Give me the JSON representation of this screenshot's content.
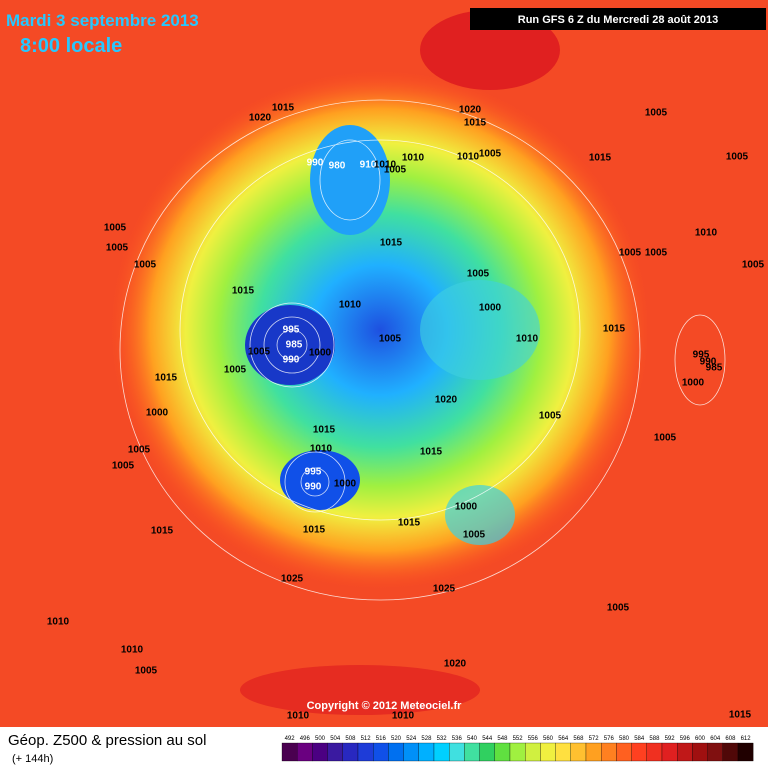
{
  "header": {
    "date": "Mardi 3 septembre 2013",
    "time": "8:00 locale",
    "run": "Run GFS 6 Z du Mercredi 28 août 2013"
  },
  "copyright": "Copyright © 2012 Meteociel.fr",
  "footer": {
    "title": "Géop. Z500 & pression au sol",
    "lead": "(+ 144h)"
  },
  "isobar_labels": [
    "1015",
    "1020",
    "1020",
    "1015",
    "1005",
    "990",
    "980",
    "910",
    "1010",
    "1005",
    "1010",
    "1010",
    "1005",
    "1015",
    "1005",
    "1005",
    "1005",
    "1005",
    "1010",
    "1015",
    "1005",
    "1005",
    "1005",
    "1005",
    "1015",
    "1000",
    "1010",
    "995",
    "985",
    "990",
    "1005",
    "1000",
    "1005",
    "1005",
    "1010",
    "1015",
    "995",
    "990",
    "985",
    "1000",
    "1015",
    "1000",
    "1020",
    "1005",
    "1005",
    "1005",
    "1015",
    "1010",
    "1015",
    "1005",
    "995",
    "990",
    "1000",
    "1000",
    "1015",
    "1015",
    "1015",
    "1005",
    "1025",
    "1025",
    "1005",
    "1010",
    "1010",
    "1005",
    "1020",
    "1015",
    "1010",
    "1010"
  ],
  "legend": {
    "values": [
      492,
      496,
      500,
      504,
      508,
      512,
      516,
      520,
      524,
      528,
      532,
      536,
      540,
      544,
      548,
      552,
      556,
      560,
      564,
      568,
      572,
      576,
      580,
      584,
      588,
      592,
      596,
      600,
      604,
      608,
      612
    ],
    "colors": [
      "#4a0050",
      "#6a0080",
      "#4b0082",
      "#3a1aa0",
      "#2828c0",
      "#1e3cd8",
      "#1050e8",
      "#0070f0",
      "#0090f8",
      "#00b0ff",
      "#00d0ff",
      "#40e0e0",
      "#40e0a0",
      "#30d060",
      "#60e040",
      "#a0f040",
      "#d0f040",
      "#f0f040",
      "#ffe040",
      "#ffc030",
      "#ffa020",
      "#ff8020",
      "#ff6020",
      "#ff4020",
      "#f03020",
      "#e02020",
      "#c01818",
      "#a01010",
      "#801010",
      "#500808",
      "#200000"
    ]
  }
}
